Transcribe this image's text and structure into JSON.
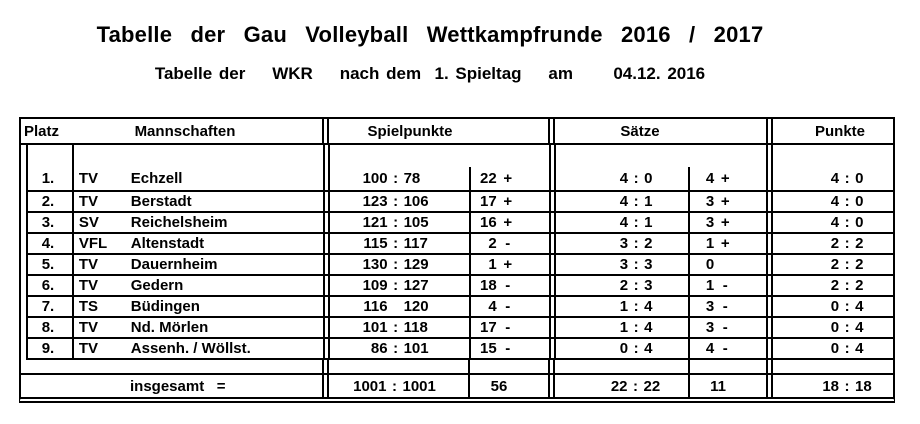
{
  "colors": {
    "text": "#000000",
    "background": "#ffffff",
    "lines": "#000000"
  },
  "title": "Tabelle der Gau Volleyball Wettkampfrunde 2016 / 2017",
  "subtitle": "Tabelle der    WKR    nach dem  1. Spieltag    am      04.12. 2016",
  "table": {
    "headers": {
      "platz": "Platz",
      "mannschaften": "Mannschaften",
      "spielpunkte": "Spielpunkte",
      "saetze": "Sätze",
      "punkte": "Punkte"
    },
    "rows": [
      {
        "rank": "1.",
        "club": "TV",
        "team": "Echzell",
        "sp_a": "100",
        "sp_sep": ":",
        "sp_b": "78",
        "spd_n": "22",
        "spd_s": "+",
        "s_a": "4",
        "s_sep": ":",
        "s_b": "0",
        "sd_n": "4",
        "sd_s": "+",
        "p_a": "4",
        "p_sep": ":",
        "p_b": "0"
      },
      {
        "rank": "2.",
        "club": "TV",
        "team": "Berstadt",
        "sp_a": "123",
        "sp_sep": ":",
        "sp_b": "106",
        "spd_n": "17",
        "spd_s": "+",
        "s_a": "4",
        "s_sep": ":",
        "s_b": "1",
        "sd_n": "3",
        "sd_s": "+",
        "p_a": "4",
        "p_sep": ":",
        "p_b": "0"
      },
      {
        "rank": "3.",
        "club": "SV",
        "team": "Reichelsheim",
        "sp_a": "121",
        "sp_sep": ":",
        "sp_b": "105",
        "spd_n": "16",
        "spd_s": "+",
        "s_a": "4",
        "s_sep": ":",
        "s_b": "1",
        "sd_n": "3",
        "sd_s": "+",
        "p_a": "4",
        "p_sep": ":",
        "p_b": "0"
      },
      {
        "rank": "4.",
        "club": "VFL",
        "team": "Altenstadt",
        "sp_a": "115",
        "sp_sep": ":",
        "sp_b": "117",
        "spd_n": "2",
        "spd_s": "-",
        "s_a": "3",
        "s_sep": ":",
        "s_b": "2",
        "sd_n": "1",
        "sd_s": "+",
        "p_a": "2",
        "p_sep": ":",
        "p_b": "2"
      },
      {
        "rank": "5.",
        "club": "TV",
        "team": "Dauernheim",
        "sp_a": "130",
        "sp_sep": ":",
        "sp_b": "129",
        "spd_n": "1",
        "spd_s": "+",
        "s_a": "3",
        "s_sep": ":",
        "s_b": "3",
        "sd_n": "0",
        "sd_s": "",
        "p_a": "2",
        "p_sep": ":",
        "p_b": "2"
      },
      {
        "rank": "6.",
        "club": "TV",
        "team": "Gedern",
        "sp_a": "109",
        "sp_sep": ":",
        "sp_b": "127",
        "spd_n": "18",
        "spd_s": "-",
        "s_a": "2",
        "s_sep": ":",
        "s_b": "3",
        "sd_n": "1",
        "sd_s": "-",
        "p_a": "2",
        "p_sep": ":",
        "p_b": "2"
      },
      {
        "rank": "7.",
        "club": "TS",
        "team": "Büdingen",
        "sp_a": "116",
        "sp_sep": "",
        "sp_b": "120",
        "spd_n": "4",
        "spd_s": "-",
        "s_a": "1",
        "s_sep": ":",
        "s_b": "4",
        "sd_n": "3",
        "sd_s": "-",
        "p_a": "0",
        "p_sep": ":",
        "p_b": "4"
      },
      {
        "rank": "8.",
        "club": "TV",
        "team": "Nd. Mörlen",
        "sp_a": "101",
        "sp_sep": ":",
        "sp_b": "118",
        "spd_n": "17",
        "spd_s": "-",
        "s_a": "1",
        "s_sep": ":",
        "s_b": "4",
        "sd_n": "3",
        "sd_s": "-",
        "p_a": "0",
        "p_sep": ":",
        "p_b": "4"
      },
      {
        "rank": "9.",
        "club": "TV",
        "team": "Assenh. / Wöllst.",
        "sp_a": "86",
        "sp_sep": ":",
        "sp_b": "101",
        "spd_n": "15",
        "spd_s": "-",
        "s_a": "0",
        "s_sep": ":",
        "s_b": "4",
        "sd_n": "4",
        "sd_s": "-",
        "p_a": "0",
        "p_sep": ":",
        "p_b": "4"
      }
    ],
    "total": {
      "label": "insgesamt   =",
      "sp_a": "1001",
      "sp_sep": ":",
      "sp_b": "1001",
      "spd": "56",
      "s_a": "22",
      "s_sep": ":",
      "s_b": "22",
      "sd": "11",
      "p_a": "18",
      "p_sep": ":",
      "p_b": "18"
    }
  }
}
